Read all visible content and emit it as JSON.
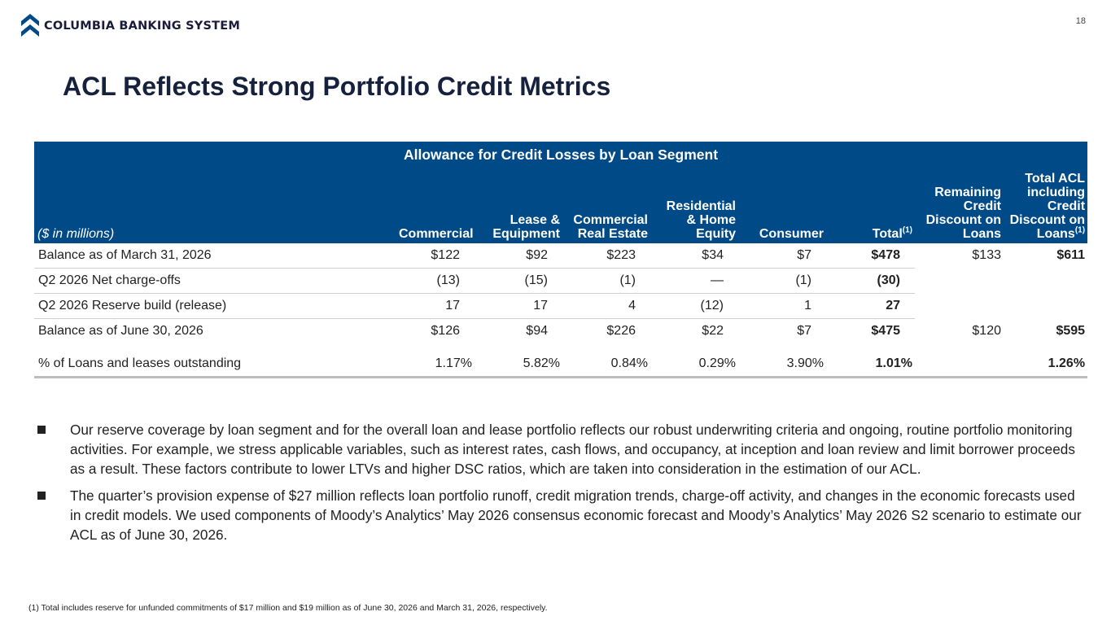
{
  "header": {
    "company_name": "COLUMBIA BANKING SYSTEM",
    "page_number": "18",
    "logo_icon": "chevron-logo-icon",
    "brand_color": "#004b87"
  },
  "title": "ACL Reflects Strong Portfolio Credit Metrics",
  "table": {
    "caption": "Allowance for Credit Losses by Loan Segment",
    "units_label": "($ in millions)",
    "columns": [
      {
        "lines": [
          "Commercial"
        ],
        "sup": ""
      },
      {
        "lines": [
          "Lease &",
          "Equipment"
        ],
        "sup": ""
      },
      {
        "lines": [
          "Commercial",
          "Real Estate"
        ],
        "sup": ""
      },
      {
        "lines": [
          "Residential",
          "& Home",
          "Equity"
        ],
        "sup": ""
      },
      {
        "lines": [
          "Consumer"
        ],
        "sup": ""
      },
      {
        "lines": [
          "Total"
        ],
        "sup": "(1)"
      },
      {
        "lines": [
          "Remaining",
          "Credit",
          "Discount on",
          "Loans"
        ],
        "sup": ""
      },
      {
        "lines": [
          "Total ACL",
          "including",
          "Credit",
          "Discount on",
          "Loans"
        ],
        "sup": "(1)"
      }
    ],
    "rows": [
      {
        "label": "Balance as of March 31, 2026",
        "cells": [
          "$122",
          "$92",
          "$223",
          "$34",
          "$7",
          "$478",
          "$133",
          "$611"
        ]
      },
      {
        "label": "Q2 2026 Net charge-offs",
        "cells": [
          "(13)",
          "(15)",
          "(1)",
          "—",
          "(1)",
          "(30)",
          "",
          ""
        ]
      },
      {
        "label": "Q2 2026 Reserve build (release)",
        "cells": [
          "17",
          "17",
          "4",
          "(12)",
          "1",
          "27",
          "",
          ""
        ]
      },
      {
        "label": "Balance as of June 30, 2026",
        "cells": [
          "$126",
          "$94",
          "$226",
          "$22",
          "$7",
          "$475",
          "$120",
          "$595"
        ]
      },
      {
        "label": "% of Loans and leases outstanding",
        "cells": [
          "1.17%",
          "5.82%",
          "0.84%",
          "0.29%",
          "3.90%",
          "1.01%",
          "",
          "1.26%"
        ]
      }
    ]
  },
  "bullets": [
    "Our reserve coverage by loan segment and for the overall loan and lease portfolio reflects our robust underwriting criteria and ongoing, routine portfolio monitoring activities. For example, we stress applicable variables, such as interest rates, cash flows, and occupancy, at inception and loan review and limit borrower proceeds as a result. These factors contribute to lower LTVs and higher DSC ratios, which are taken into consideration in the estimation of our ACL.",
    "The quarter’s provision expense of $27 million reflects loan portfolio runoff, credit migration trends, charge-off activity, and changes in the economic forecasts used in credit models. We used components of Moody’s Analytics’ May 2026 consensus economic forecast and Moody’s Analytics’ May 2026 S2 scenario to estimate our ACL as of June 30, 2026."
  ],
  "footnote": "(1)  Total includes reserve for unfunded commitments of $17 million and $19 million as of June 30, 2026 and March 31, 2026, respectively."
}
